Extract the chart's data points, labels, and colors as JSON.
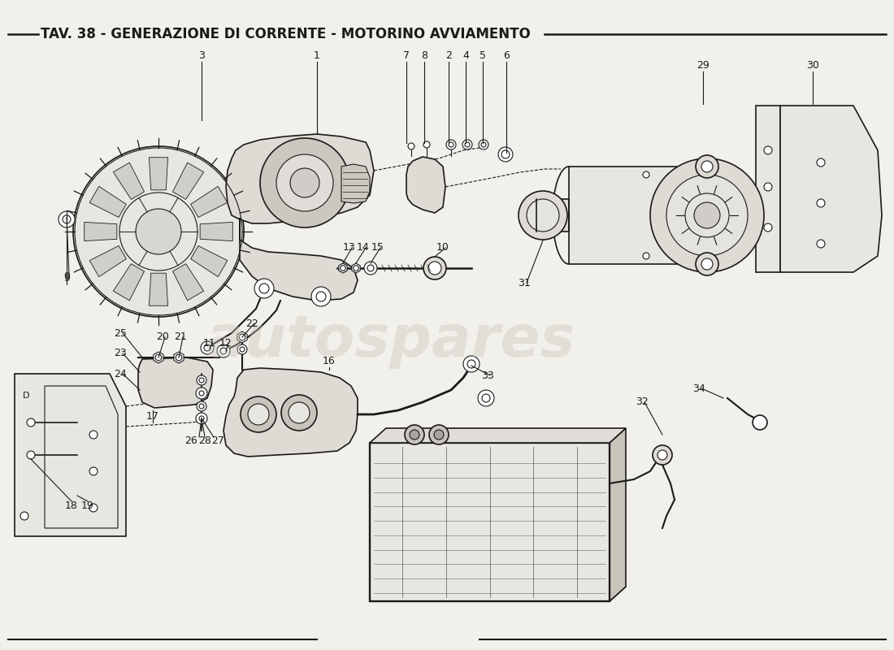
{
  "title": "TAV. 38 - GENERAZIONE DI CORRENTE - MOTORINO AVVIAMENTO",
  "background_color": "#f2f0eb",
  "title_fontsize": 12,
  "title_font": "DejaVu Sans",
  "title_weight": "bold",
  "watermark_text": "autospares",
  "watermark_color": "#c8c4b8",
  "watermark_fontsize": 52,
  "watermark_alpha": 0.4,
  "fig_width": 11.0,
  "fig_height": 8.0,
  "dpi": 100,
  "line_color": "#1a1a1a",
  "label_fontsize": 9,
  "bg_color": "#f2f0eb"
}
